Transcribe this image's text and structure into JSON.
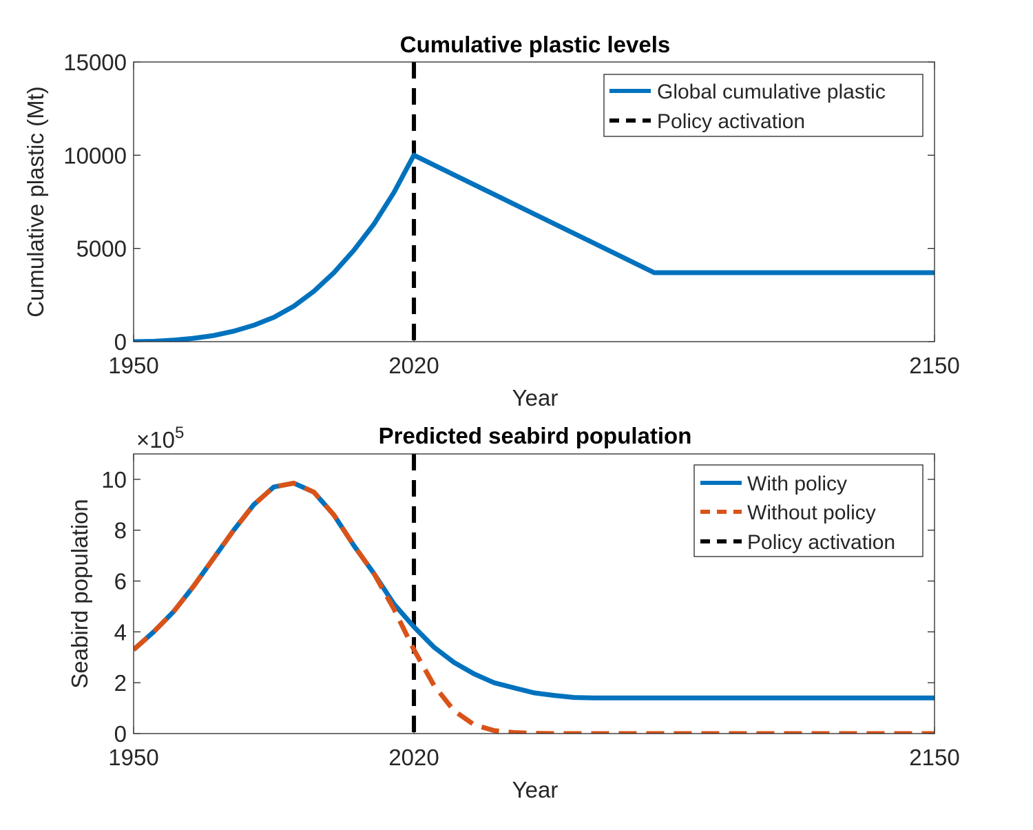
{
  "chart_data": [
    {
      "type": "line",
      "title": "Cumulative plastic levels",
      "xlabel": "Year",
      "ylabel": "Cumulative plastic (Mt)",
      "xlim": [
        1950,
        2150
      ],
      "ylim": [
        0,
        15000
      ],
      "xticks": [
        1950,
        2020,
        2150
      ],
      "yticks": [
        0,
        5000,
        10000,
        15000
      ],
      "legend_position": "top-right",
      "grid": false,
      "series": [
        {
          "name": "Global cumulative plastic",
          "color": "#0072BD",
          "style": "solid",
          "x": [
            1950,
            1955,
            1960,
            1965,
            1970,
            1975,
            1980,
            1985,
            1990,
            1995,
            2000,
            2005,
            2010,
            2015,
            2020,
            2030,
            2040,
            2050,
            2060,
            2070,
            2080,
            2083,
            2100,
            2125,
            2150
          ],
          "y": [
            0,
            20,
            80,
            180,
            330,
            560,
            880,
            1300,
            1900,
            2700,
            3700,
            4900,
            6300,
            8000,
            10000,
            8950,
            7900,
            6850,
            5800,
            4750,
            3700,
            3700,
            3700,
            3700,
            3700
          ]
        }
      ],
      "vlines": [
        {
          "name": "Policy activation",
          "x": 2020,
          "color": "#000000",
          "style": "dashed"
        }
      ]
    },
    {
      "type": "line",
      "title": "Predicted seabird population",
      "xlabel": "Year",
      "ylabel": "Seabird population",
      "y_multiplier": "×10",
      "y_multiplier_exp": "5",
      "xlim": [
        1950,
        2150
      ],
      "ylim": [
        0,
        11
      ],
      "xticks": [
        1950,
        2020,
        2150
      ],
      "yticks": [
        0,
        2,
        4,
        6,
        8,
        10
      ],
      "legend_position": "top-right",
      "grid": false,
      "series": [
        {
          "name": "With policy",
          "color": "#0072BD",
          "style": "solid",
          "x": [
            1950,
            1955,
            1960,
            1965,
            1970,
            1975,
            1980,
            1985,
            1990,
            1995,
            2000,
            2005,
            2010,
            2015,
            2020,
            2025,
            2030,
            2035,
            2040,
            2045,
            2050,
            2055,
            2060,
            2065,
            2070,
            2080,
            2090,
            2100,
            2125,
            2150
          ],
          "y": [
            3.3,
            4.0,
            4.8,
            5.8,
            6.9,
            8.0,
            9.0,
            9.7,
            9.85,
            9.5,
            8.6,
            7.4,
            6.3,
            5.1,
            4.2,
            3.4,
            2.8,
            2.35,
            2.0,
            1.8,
            1.6,
            1.5,
            1.42,
            1.4,
            1.4,
            1.4,
            1.4,
            1.4,
            1.4,
            1.4
          ]
        },
        {
          "name": "Without policy",
          "color": "#D95319",
          "style": "dashed",
          "x": [
            1950,
            1955,
            1960,
            1965,
            1970,
            1975,
            1980,
            1985,
            1990,
            1995,
            2000,
            2005,
            2010,
            2015,
            2020,
            2025,
            2030,
            2035,
            2040,
            2045,
            2050,
            2055,
            2060,
            2070,
            2080,
            2100,
            2125,
            2150
          ],
          "y": [
            3.3,
            4.0,
            4.8,
            5.8,
            6.9,
            8.0,
            9.0,
            9.7,
            9.85,
            9.5,
            8.6,
            7.4,
            6.3,
            4.9,
            3.3,
            1.9,
            0.9,
            0.35,
            0.12,
            0.04,
            0.01,
            0.0,
            0.0,
            0.0,
            0.0,
            0.0,
            0.0,
            0.0
          ]
        }
      ],
      "vlines": [
        {
          "name": "Policy activation",
          "x": 2020,
          "color": "#000000",
          "style": "dashed"
        }
      ]
    }
  ]
}
